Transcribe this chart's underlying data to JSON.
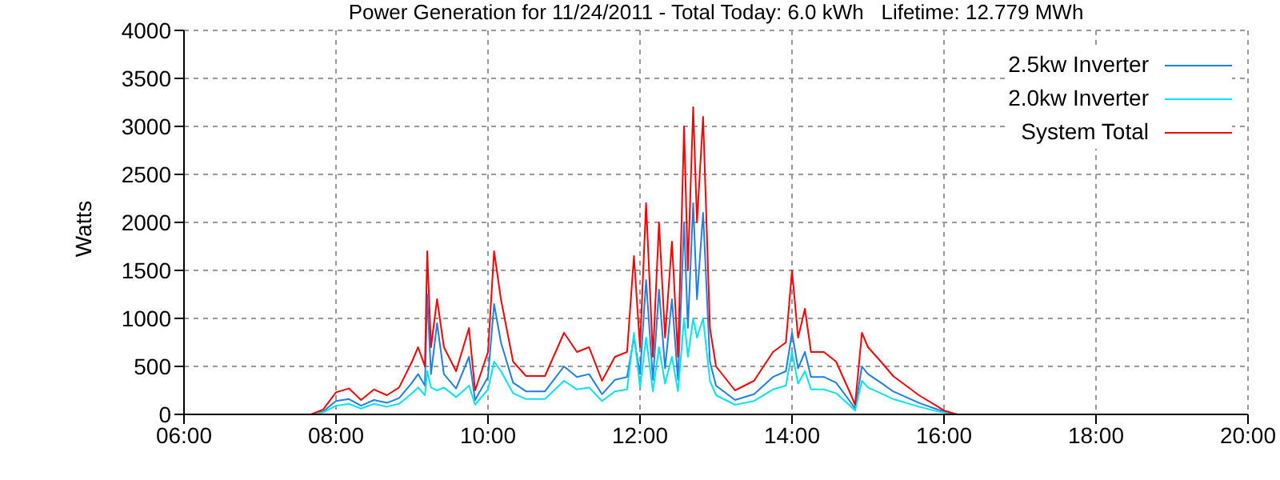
{
  "chart_data": {
    "type": "line",
    "title": "Power Generation for 11/24/2011 - Total Today: 6.0 kWh   Lifetime: 12.779 MWh",
    "ylabel": "Watts",
    "x": [
      7.67,
      7.83,
      8,
      8.17,
      8.33,
      8.5,
      8.67,
      8.83,
      9,
      9.08,
      9.17,
      9.2,
      9.25,
      9.33,
      9.42,
      9.58,
      9.75,
      9.83,
      10,
      10.08,
      10.17,
      10.33,
      10.5,
      10.75,
      11,
      11.17,
      11.33,
      11.5,
      11.67,
      11.83,
      11.92,
      12,
      12.08,
      12.17,
      12.25,
      12.33,
      12.42,
      12.5,
      12.58,
      12.63,
      12.7,
      12.75,
      12.83,
      12.92,
      13,
      13.25,
      13.5,
      13.75,
      13.92,
      14,
      14.08,
      14.17,
      14.25,
      14.42,
      14.58,
      14.75,
      14.83,
      14.92,
      15,
      15.17,
      15.33,
      15.67,
      15.92,
      16,
      16.17
    ],
    "series": [
      {
        "name": "2.5kw Inverter",
        "color": "#1e7fe8",
        "values": [
          0,
          30,
          140,
          160,
          90,
          150,
          120,
          170,
          330,
          420,
          300,
          1250,
          420,
          950,
          420,
          270,
          600,
          150,
          390,
          1150,
          750,
          330,
          240,
          240,
          500,
          390,
          420,
          210,
          360,
          390,
          800,
          420,
          1400,
          360,
          1300,
          480,
          1200,
          360,
          2000,
          900,
          2200,
          1200,
          2100,
          550,
          300,
          150,
          210,
          390,
          450,
          850,
          480,
          650,
          390,
          390,
          330,
          150,
          60,
          500,
          420,
          330,
          240,
          120,
          50,
          30,
          0
        ]
      },
      {
        "name": "2.0kw Inverter",
        "color": "#00e5ee",
        "values": [
          0,
          20,
          90,
          110,
          60,
          110,
          80,
          110,
          220,
          280,
          200,
          450,
          280,
          250,
          280,
          180,
          300,
          100,
          260,
          550,
          450,
          220,
          160,
          160,
          350,
          260,
          280,
          140,
          240,
          260,
          850,
          280,
          800,
          240,
          700,
          320,
          600,
          240,
          1000,
          600,
          1000,
          800,
          1000,
          350,
          200,
          100,
          140,
          260,
          300,
          650,
          320,
          450,
          260,
          260,
          220,
          100,
          40,
          350,
          280,
          220,
          160,
          80,
          30,
          20,
          0
        ]
      },
      {
        "name": "System Total",
        "color": "#ff0000",
        "values": [
          0,
          50,
          230,
          270,
          150,
          260,
          200,
          280,
          550,
          700,
          500,
          1700,
          700,
          1200,
          700,
          450,
          900,
          250,
          650,
          1700,
          1200,
          550,
          400,
          400,
          850,
          650,
          700,
          350,
          600,
          650,
          1650,
          700,
          2200,
          600,
          2000,
          800,
          1800,
          600,
          3000,
          1500,
          3200,
          2000,
          3100,
          900,
          500,
          250,
          350,
          650,
          750,
          1500,
          800,
          1100,
          650,
          650,
          550,
          250,
          100,
          850,
          700,
          550,
          400,
          200,
          80,
          40,
          0
        ]
      }
    ],
    "xlim": [
      6,
      20
    ],
    "xticks": [
      {
        "value": 6,
        "label": "06:00"
      },
      {
        "value": 8,
        "label": "08:00"
      },
      {
        "value": 10,
        "label": "10:00"
      },
      {
        "value": 12,
        "label": "12:00"
      },
      {
        "value": 14,
        "label": "14:00"
      },
      {
        "value": 16,
        "label": "16:00"
      },
      {
        "value": 18,
        "label": "18:00"
      },
      {
        "value": 20,
        "label": "20:00"
      }
    ],
    "ylim": [
      0,
      4000
    ],
    "yticks": [
      0,
      500,
      1000,
      1500,
      2000,
      2500,
      3000,
      3500,
      4000
    ],
    "grid": true,
    "legend": "top right",
    "marker": "none",
    "line_style": "solid"
  }
}
